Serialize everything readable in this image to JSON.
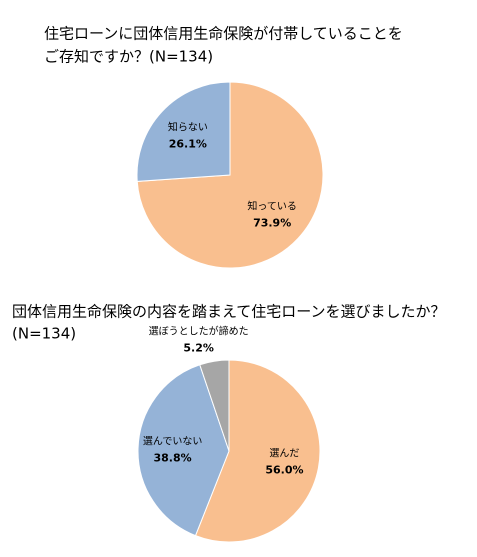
{
  "chart_data": [
    {
      "type": "pie",
      "title": [
        "住宅ローンに団体信用生命保険が付帯していることを",
        "ご存知ですか？(N=134)"
      ],
      "categories": [
        "知っている",
        "知らない"
      ],
      "values": [
        73.9,
        26.1
      ],
      "value_labels": [
        "73.9%",
        "26.1%"
      ],
      "colors": [
        "#f9bf8f",
        "#95b3d7"
      ]
    },
    {
      "type": "pie",
      "title": [
        "団体信用生命保険の内容を踏まえて住宅ローンを選びましたか？",
        "(N=134)"
      ],
      "categories": [
        "選んだ",
        "選んでいない",
        "選ぼうとしたが諦めた"
      ],
      "values": [
        56.0,
        38.8,
        5.2
      ],
      "value_labels": [
        "56.0%",
        "38.8%",
        "5.2%"
      ],
      "colors": [
        "#f9bf8f",
        "#95b3d7",
        "#a6a6a6"
      ]
    }
  ]
}
